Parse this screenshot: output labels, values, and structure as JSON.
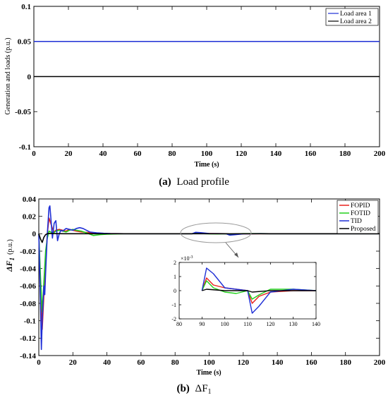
{
  "chart_data": [
    {
      "type": "line",
      "caption_label": "(a)",
      "caption_text": "Load profile",
      "xlabel": "Time (s)",
      "ylabel": "Generation and loads (p.u.)",
      "xlim": [
        0,
        200
      ],
      "ylim": [
        -0.1,
        0.1
      ],
      "xticks": [
        "0",
        "20",
        "40",
        "60",
        "80",
        "100",
        "120",
        "140",
        "160",
        "180",
        "200"
      ],
      "yticks": [
        "0.1",
        "0.05",
        "0",
        "-0.05",
        "-0.1"
      ],
      "grid": false,
      "legend_position": "top-right",
      "series": [
        {
          "name": "Load area 1",
          "color": "#1f2fd6",
          "x": [
            0,
            200
          ],
          "y": [
            0.05,
            0.05
          ]
        },
        {
          "name": "Load area 2",
          "color": "#000000",
          "x": [
            0,
            200
          ],
          "y": [
            0,
            0
          ]
        }
      ]
    },
    {
      "type": "line",
      "caption_label": "(b)",
      "caption_text": "ΔF",
      "caption_sub": "1",
      "xlabel": "Time (s)",
      "ylabel": "ΔF",
      "ylabel_sub": "1",
      "ylabel_unit": "(p.u.)",
      "xlim": [
        0,
        200
      ],
      "ylim": [
        -0.14,
        0.04
      ],
      "xticks": [
        "0",
        "20",
        "40",
        "60",
        "80",
        "100",
        "120",
        "140",
        "160",
        "180",
        "200"
      ],
      "yticks": [
        "0.04",
        "0.02",
        "0",
        "-0.02",
        "-0.04",
        "-0.06",
        "-0.08",
        "-0.1",
        "-0.12",
        "-0.14"
      ],
      "grid": false,
      "legend_position": "top-right",
      "series": [
        {
          "name": "FOPID",
          "color": "#e8201c",
          "x": [
            0,
            1,
            2,
            3,
            4,
            5,
            6,
            7,
            8,
            9,
            10,
            12,
            14,
            16,
            18,
            20,
            22,
            25,
            28,
            32,
            36,
            40,
            50,
            60,
            90,
            92,
            95,
            100,
            105,
            110,
            112,
            115,
            120,
            130,
            140,
            200
          ],
          "y": [
            0,
            -0.06,
            -0.11,
            -0.07,
            -0.035,
            0.0,
            0.018,
            0.012,
            0.006,
            0.002,
            0.004,
            0.005,
            0.004,
            0.003,
            0.005,
            0.004,
            0.003,
            0.002,
            0.0015,
            0.001,
            0.0005,
            0.0002,
            0,
            0,
            0,
            0.0009,
            0.0004,
            0.0002,
            0.0001,
            0,
            -0.0009,
            -0.0004,
            -0.0001,
            0,
            0,
            0
          ]
        },
        {
          "name": "FOTID",
          "color": "#22d11c",
          "x": [
            0,
            1,
            2,
            3,
            4,
            5,
            6,
            7,
            8,
            10,
            12,
            14,
            16,
            18,
            20,
            22,
            25,
            28,
            32,
            36,
            40,
            50,
            60,
            90,
            92,
            95,
            100,
            105,
            110,
            112,
            115,
            120,
            130,
            140,
            200
          ],
          "y": [
            0,
            -0.05,
            -0.09,
            -0.055,
            -0.02,
            -0.005,
            0.003,
            0.002,
            0.0,
            0.003,
            0.004,
            0.003,
            0.002,
            0.004,
            0.005,
            0.004,
            0.003,
            0.001,
            -0.002,
            -0.001,
            -0.0005,
            0,
            0,
            0,
            0.0007,
            0.0002,
            -0.0001,
            -0.0002,
            0,
            -0.0006,
            -0.0003,
            0.0001,
            0.0001,
            0,
            0
          ]
        },
        {
          "name": "TID",
          "color": "#1f2fd6",
          "x": [
            0,
            1,
            1.5,
            2,
            3,
            3.5,
            4,
            5,
            6,
            6.5,
            7,
            8,
            9,
            10,
            11,
            12,
            13,
            14,
            16,
            18,
            20,
            22,
            24,
            26,
            28,
            30,
            34,
            38,
            42,
            50,
            60,
            90,
            92,
            95,
            100,
            105,
            110,
            112,
            115,
            120,
            130,
            140,
            200
          ],
          "y": [
            0,
            -0.08,
            -0.133,
            -0.1,
            -0.06,
            -0.07,
            -0.045,
            0.0,
            0.03,
            0.032,
            0.02,
            -0.005,
            0.012,
            0.015,
            -0.008,
            0.0,
            0.004,
            0.003,
            0.006,
            0.005,
            0.004,
            0.006,
            0.007,
            0.006,
            0.004,
            0.002,
            0.001,
            0.0005,
            0.0002,
            0,
            0,
            0,
            0.0016,
            0.0012,
            0.0002,
            0.0001,
            0,
            -0.0016,
            -0.0011,
            -0.0001,
            0.0001,
            0,
            0
          ]
        },
        {
          "name": "Proposed",
          "color": "#000000",
          "x": [
            0,
            1,
            2,
            3,
            4,
            5,
            6,
            8,
            10,
            15,
            20,
            40,
            90,
            92,
            100,
            110,
            112,
            120,
            140,
            200
          ],
          "y": [
            0,
            -0.006,
            -0.01,
            -0.004,
            -0.001,
            0.0,
            0.0003,
            0.0002,
            0.0001,
            0,
            0,
            0,
            0,
            0.0001,
            0,
            0,
            -0.0001,
            0,
            0,
            0
          ]
        }
      ],
      "inset": {
        "xlim": [
          80,
          140
        ],
        "ylim": [
          -2,
          2
        ],
        "multiplier": "×10",
        "multiplier_exp": "-3",
        "xticks": [
          "80",
          "90",
          "100",
          "110",
          "120",
          "130",
          "140"
        ],
        "yticks": [
          "2",
          "1",
          "0",
          "-1",
          "-2"
        ]
      }
    }
  ]
}
